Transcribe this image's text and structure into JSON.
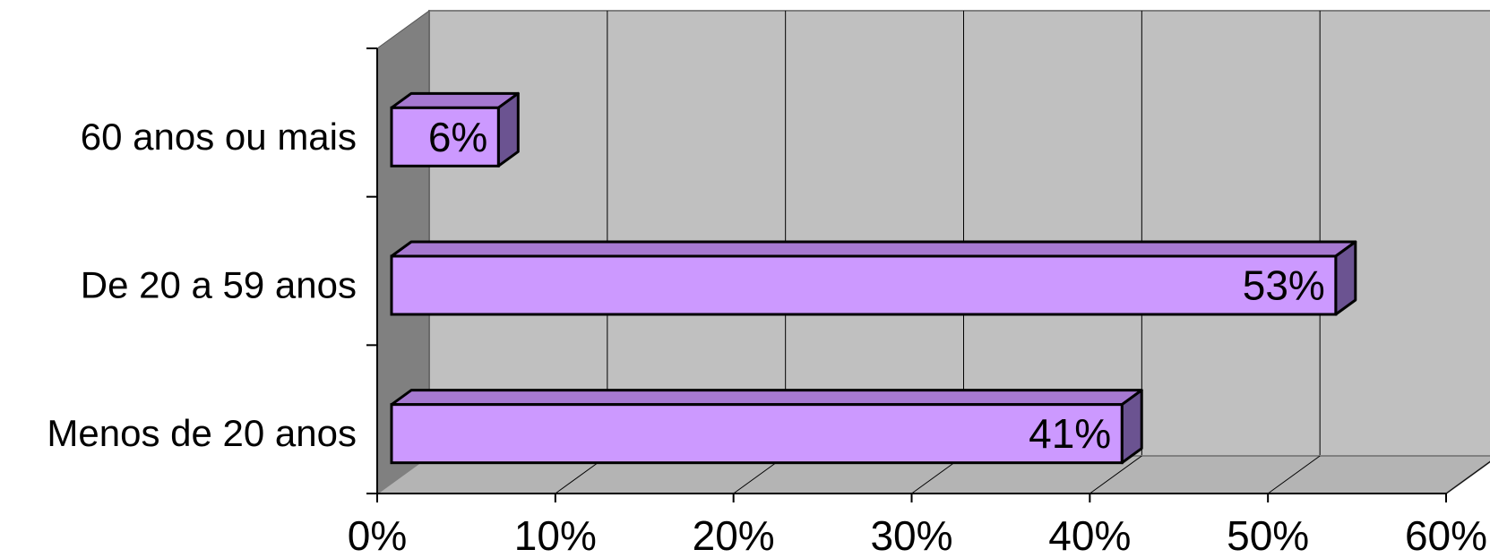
{
  "chart_data": {
    "type": "bar",
    "orientation": "horizontal",
    "style": "3d",
    "categories": [
      "60 anos ou mais",
      "De 20 a 59 anos",
      "Menos de 20 anos"
    ],
    "values": [
      6,
      53,
      41
    ],
    "data_labels": [
      "6%",
      "53%",
      "41%"
    ],
    "xlim": [
      0,
      60
    ],
    "x_ticks": [
      0,
      10,
      20,
      30,
      40,
      50,
      60
    ],
    "x_tick_labels": [
      "0%",
      "10%",
      "20%",
      "30%",
      "40%",
      "50%",
      "60%"
    ],
    "grid": true,
    "legend": "none",
    "colors": {
      "bar_front": "#cc99ff",
      "bar_top": "#a679d1",
      "bar_side": "#6b5391",
      "back_wall": "#c0c0c0",
      "side_wall": "#808080",
      "floor": "#b4b4b4",
      "grid": "#000000"
    }
  }
}
